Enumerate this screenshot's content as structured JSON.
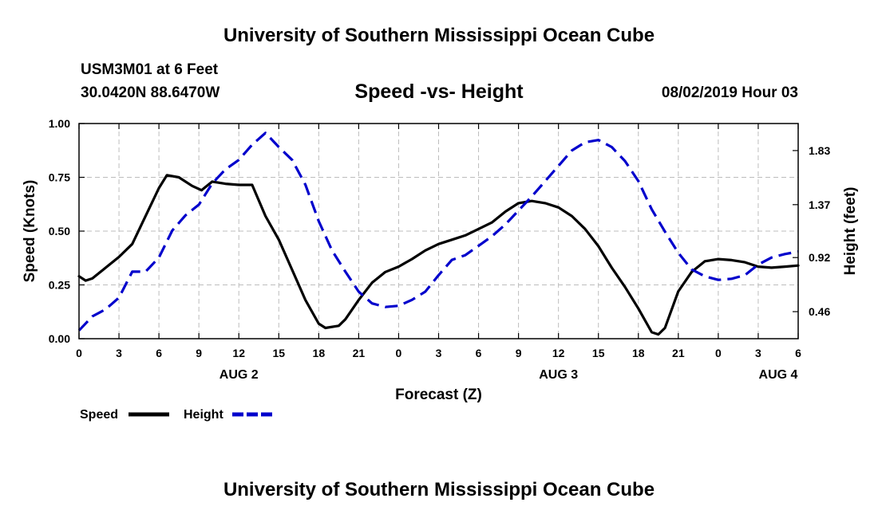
{
  "header": {
    "title": "University of Southern Mississippi Ocean Cube",
    "station": "USM3M01 at 6 Feet",
    "coords": "30.0420N 88.6470W",
    "subtitle": "Speed -vs- Height",
    "datetime": "08/02/2019 Hour 03"
  },
  "footer": {
    "title": "University of Southern Mississippi Ocean Cube"
  },
  "chart_data": {
    "type": "line",
    "title": "Speed -vs- Height",
    "xlabel": "Forecast (Z)",
    "ylabel": "Speed (Knots)",
    "y2label": "Height (feet)",
    "xlim": [
      0,
      54
    ],
    "ylim": [
      0,
      1
    ],
    "y2lim": [
      0.23,
      2.06
    ],
    "grid": true,
    "x_ticks": [
      0,
      3,
      6,
      9,
      12,
      15,
      18,
      21,
      24,
      27,
      30,
      33,
      36,
      39,
      42,
      45,
      48,
      51,
      54
    ],
    "x_tick_labels": [
      "0",
      "3",
      "6",
      "9",
      "12",
      "15",
      "18",
      "21",
      "0",
      "3",
      "6",
      "9",
      "12",
      "15",
      "18",
      "21",
      "0",
      "3",
      "6"
    ],
    "y_ticks": [
      0,
      0.25,
      0.5,
      0.75,
      1.0
    ],
    "y_tick_labels": [
      "0.00",
      "0.25",
      "0.50",
      "0.75",
      "1.00"
    ],
    "y2_ticks": [
      0.46,
      0.92,
      1.37,
      1.83
    ],
    "y2_tick_labels": [
      "0.46",
      "0.92",
      "1.37",
      "1.83"
    ],
    "day_labels": [
      {
        "x": 12,
        "label": "AUG 2"
      },
      {
        "x": 36,
        "label": "AUG 3"
      },
      {
        "x": 52.5,
        "label": "AUG 4"
      }
    ],
    "legend_position": "bottom-left",
    "series": [
      {
        "name": "Speed",
        "axis": "left",
        "color": "#000000",
        "style": "solid",
        "points": [
          [
            0,
            0.29
          ],
          [
            0.5,
            0.27
          ],
          [
            1,
            0.28
          ],
          [
            2,
            0.33
          ],
          [
            3,
            0.38
          ],
          [
            4,
            0.44
          ],
          [
            5,
            0.57
          ],
          [
            6,
            0.7
          ],
          [
            6.6,
            0.76
          ],
          [
            7.5,
            0.75
          ],
          [
            8.5,
            0.71
          ],
          [
            9.2,
            0.69
          ],
          [
            10,
            0.73
          ],
          [
            11,
            0.72
          ],
          [
            12,
            0.715
          ],
          [
            13,
            0.715
          ],
          [
            14,
            0.57
          ],
          [
            15,
            0.46
          ],
          [
            16,
            0.32
          ],
          [
            17,
            0.18
          ],
          [
            18,
            0.07
          ],
          [
            18.5,
            0.05
          ],
          [
            19.5,
            0.06
          ],
          [
            20,
            0.09
          ],
          [
            21,
            0.18
          ],
          [
            22,
            0.26
          ],
          [
            23,
            0.31
          ],
          [
            24,
            0.335
          ],
          [
            25,
            0.37
          ],
          [
            26,
            0.41
          ],
          [
            27,
            0.44
          ],
          [
            28,
            0.46
          ],
          [
            29,
            0.48
          ],
          [
            30,
            0.51
          ],
          [
            31,
            0.54
          ],
          [
            32,
            0.59
          ],
          [
            33,
            0.63
          ],
          [
            34,
            0.64
          ],
          [
            35,
            0.63
          ],
          [
            36,
            0.61
          ],
          [
            37,
            0.57
          ],
          [
            38,
            0.51
          ],
          [
            39,
            0.43
          ],
          [
            40,
            0.33
          ],
          [
            41,
            0.24
          ],
          [
            42,
            0.14
          ],
          [
            43,
            0.03
          ],
          [
            43.5,
            0.02
          ],
          [
            44,
            0.05
          ],
          [
            45,
            0.22
          ],
          [
            46,
            0.31
          ],
          [
            47,
            0.36
          ],
          [
            48,
            0.37
          ],
          [
            49,
            0.365
          ],
          [
            50,
            0.355
          ],
          [
            51,
            0.335
          ],
          [
            52,
            0.33
          ],
          [
            53,
            0.335
          ],
          [
            54,
            0.34
          ]
        ]
      },
      {
        "name": "Height",
        "axis": "right",
        "color": "#0000CC",
        "style": "dashed",
        "points": [
          [
            0,
            0.3
          ],
          [
            1,
            0.42
          ],
          [
            2,
            0.48
          ],
          [
            3,
            0.58
          ],
          [
            4,
            0.8
          ],
          [
            5,
            0.8
          ],
          [
            6,
            0.92
          ],
          [
            7,
            1.15
          ],
          [
            8,
            1.28
          ],
          [
            9,
            1.37
          ],
          [
            10,
            1.55
          ],
          [
            11,
            1.67
          ],
          [
            12,
            1.75
          ],
          [
            13,
            1.88
          ],
          [
            14,
            1.98
          ],
          [
            15,
            1.86
          ],
          [
            16,
            1.75
          ],
          [
            17,
            1.54
          ],
          [
            18,
            1.23
          ],
          [
            19,
            0.98
          ],
          [
            20,
            0.8
          ],
          [
            21,
            0.63
          ],
          [
            22,
            0.53
          ],
          [
            23,
            0.5
          ],
          [
            24,
            0.51
          ],
          [
            25,
            0.56
          ],
          [
            26,
            0.63
          ],
          [
            27,
            0.77
          ],
          [
            28,
            0.9
          ],
          [
            29,
            0.94
          ],
          [
            30,
            1.02
          ],
          [
            31,
            1.1
          ],
          [
            32,
            1.2
          ],
          [
            33,
            1.32
          ],
          [
            34,
            1.44
          ],
          [
            35,
            1.57
          ],
          [
            36,
            1.7
          ],
          [
            37,
            1.83
          ],
          [
            38,
            1.9
          ],
          [
            39,
            1.92
          ],
          [
            40,
            1.86
          ],
          [
            41,
            1.74
          ],
          [
            42,
            1.57
          ],
          [
            43,
            1.33
          ],
          [
            44,
            1.14
          ],
          [
            45,
            0.96
          ],
          [
            46,
            0.82
          ],
          [
            47,
            0.76
          ],
          [
            48,
            0.73
          ],
          [
            49,
            0.74
          ],
          [
            50,
            0.77
          ],
          [
            51,
            0.86
          ],
          [
            52,
            0.92
          ],
          [
            53,
            0.95
          ],
          [
            54,
            0.97
          ]
        ]
      }
    ]
  }
}
